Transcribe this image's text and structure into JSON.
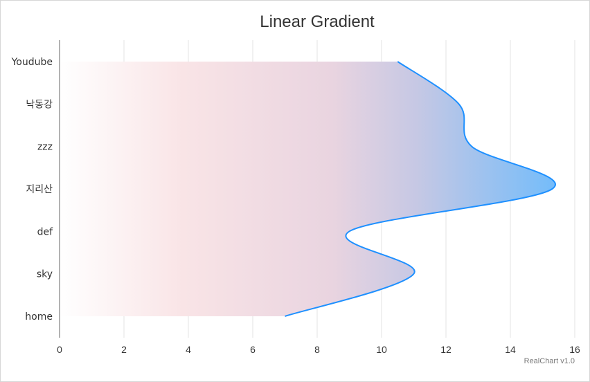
{
  "chart_data": {
    "type": "area",
    "title": "Linear Gradient",
    "credit": "RealChart v1.0",
    "orientation": "horizontal",
    "categories": [
      "Youdube",
      "낙동강",
      "zzz",
      "지리산",
      "def",
      "sky",
      "home"
    ],
    "values": [
      10.5,
      12.4,
      12.8,
      15.3,
      9.0,
      11.0,
      7.0
    ],
    "xlim": [
      0,
      16
    ],
    "xticks": [
      "0",
      "2",
      "4",
      "6",
      "8",
      "10",
      "12",
      "14",
      "16"
    ],
    "grid": true,
    "line_color": "#1e90ff",
    "gradient": [
      "#ffffff",
      "#f9e4e6",
      "#e9d4e0",
      "#c6c8e4",
      "#74bcfa"
    ]
  }
}
